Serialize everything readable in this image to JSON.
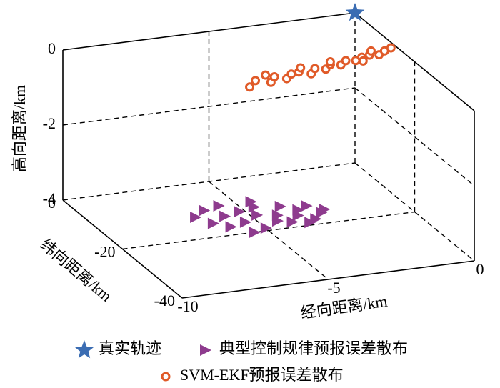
{
  "chart_data": {
    "type": "scatter3d",
    "xlabel": "经向距离/km",
    "ylabel": "纬向距离/km",
    "zlabel": "高向距离/km",
    "xlim": [
      -10,
      0
    ],
    "ylim": [
      -40,
      0
    ],
    "zlim": [
      -4,
      0
    ],
    "xticks": [
      -10,
      -5,
      0
    ],
    "yticks": [
      0,
      -20,
      -40
    ],
    "zticks": [
      0,
      -2,
      -4
    ],
    "grid": true,
    "legend": "bottom",
    "series": [
      {
        "name": "真实轨迹",
        "color": "#3b6db3",
        "marker": "star",
        "x": [
          0
        ],
        "y": [
          0
        ],
        "z": [
          0
        ]
      },
      {
        "name": "典型控制规律预报误差散布",
        "color": "#8e3b8e",
        "marker": "triangle",
        "x": [
          -6.7,
          -6.4,
          -6.2,
          -6.0,
          -5.8,
          -5.6,
          -5.4,
          -5.2,
          -5.0,
          -4.8,
          -4.6,
          -4.4,
          -4.2,
          -4.0,
          -3.8,
          -3.6,
          -3.4,
          -3.2,
          -3.0,
          -2.8,
          -2.6,
          -5.5,
          -4.5,
          -3.5
        ],
        "y": [
          -12,
          -15,
          -10,
          -17,
          -13,
          -9,
          -16,
          -12,
          -19,
          -14,
          -11,
          -17,
          -15,
          -18,
          -12,
          -16,
          -14,
          -18,
          -13,
          -16,
          -15,
          -20,
          -9,
          -19
        ],
        "z": [
          -4,
          -4,
          -4,
          -4,
          -4,
          -4,
          -4,
          -4,
          -4,
          -4,
          -4,
          -4,
          -4,
          -4,
          -4,
          -4,
          -4,
          -4,
          -4,
          -4,
          -4,
          -4,
          -4,
          -4
        ]
      },
      {
        "name": "SVM-EKF预报误差散布",
        "color": "#e05a28",
        "marker": "circle",
        "x": [
          -5.8,
          -5.4,
          -5.0,
          -4.7,
          -4.4,
          -4.1,
          -3.8,
          -3.5,
          -3.2,
          -2.9,
          -2.6,
          -2.3,
          -2.0,
          -1.7,
          -1.4,
          -1.1,
          -0.8,
          -0.5,
          -0.2,
          -4.9,
          -3.6,
          -2.5,
          -1.5,
          -0.9
        ],
        "y": [
          -21.5,
          -19.5,
          -20.8,
          -19.0,
          -20.2,
          -18.8,
          -18.4,
          -19.6,
          -17.9,
          -18.6,
          -17.2,
          -17.8,
          -16.5,
          -16.9,
          -16.0,
          -15.6,
          -15.9,
          -14.8,
          -14.0,
          -18.0,
          -17.0,
          -16.2,
          -17.4,
          -14.2
        ],
        "z": [
          0,
          0,
          0,
          0,
          0,
          0,
          0,
          0,
          0,
          0,
          0,
          0,
          0,
          0,
          0,
          0,
          0,
          0,
          0,
          0,
          0,
          0,
          0,
          0
        ]
      }
    ]
  }
}
